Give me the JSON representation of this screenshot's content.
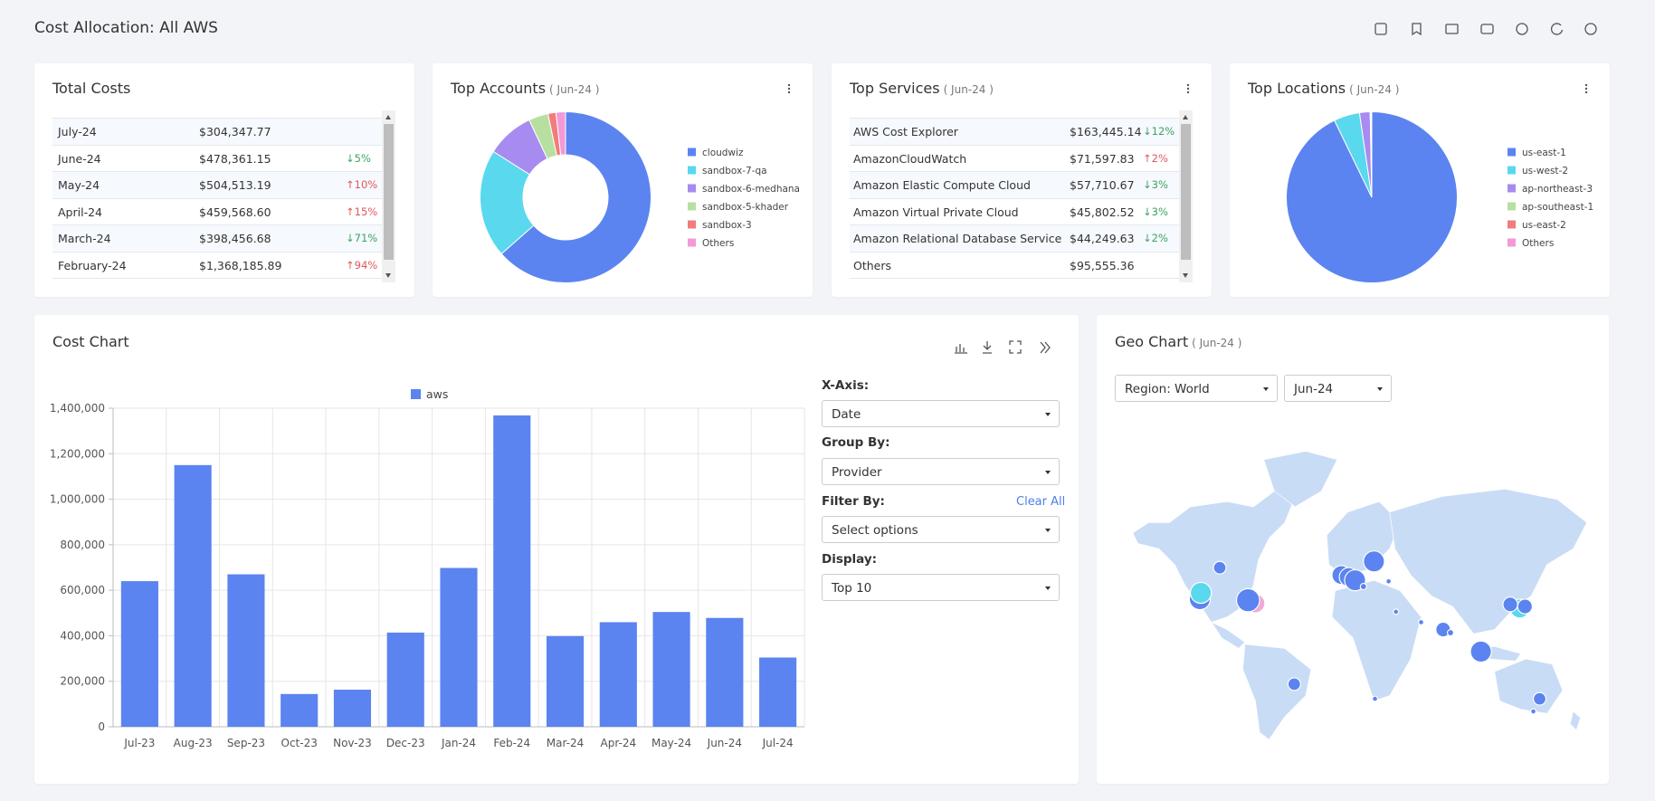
{
  "header": {
    "title": "Cost Allocation: All AWS"
  },
  "total_costs": {
    "title": "Total Costs",
    "rows": [
      [
        "July-24",
        "$304,347.77"
      ],
      [
        "June-24",
        "$478,361.15",
        "↓5%"
      ],
      [
        "May-24",
        "$504,513.19",
        "↑10%"
      ],
      [
        "April-24",
        "$459,568.60",
        "↑15%"
      ],
      [
        "March-24",
        "$398,456.68",
        "↓71%"
      ],
      [
        "February-24",
        "$1,368,185.89",
        "↑94%"
      ]
    ]
  },
  "top_services": {
    "title": "Top Services",
    "subtitle": "( Jun-24 )",
    "rows": [
      [
        "AWS Cost Explorer",
        "$163,445.14",
        "↓12%"
      ],
      [
        "AmazonCloudWatch",
        "$71,597.83",
        "↑2%"
      ],
      [
        "Amazon Elastic Compute Cloud",
        "$57,710.67",
        "↓3%"
      ],
      [
        "Amazon Virtual Private Cloud",
        "$45,802.52",
        "↓3%"
      ],
      [
        "Amazon Relational Database Service",
        "$44,249.63",
        "↓2%"
      ],
      [
        "Others",
        "$95,555.36"
      ]
    ]
  },
  "chart_data": [
    {
      "type": "donut",
      "title": "Top Accounts",
      "subtitle": "( Jun-24 )",
      "categories": [
        "cloudwiz",
        "sandbox-7-qa",
        "sandbox-6-medhana",
        "sandbox-5-khader",
        "sandbox-3",
        "Others"
      ],
      "values": [
        63.5,
        20.5,
        9,
        3.7,
        1.5,
        1.8
      ],
      "colors": [
        "#5b84f0",
        "#5ad8ee",
        "#a78bf0",
        "#b7e0a0",
        "#f27b7b",
        "#f29ad8"
      ]
    },
    {
      "type": "pie",
      "title": "Top Locations",
      "subtitle": "( Jun-24 )",
      "categories": [
        "us-east-1",
        "us-west-2",
        "ap-northeast-3",
        "ap-southeast-1",
        "us-east-2",
        "Others"
      ],
      "values": [
        92.8,
        4.9,
        2,
        0.1,
        0.1,
        0.1
      ],
      "colors": [
        "#5b84f0",
        "#5ad8ee",
        "#a78bf0",
        "#b7e0a0",
        "#f27b7b",
        "#f29ad8"
      ]
    },
    {
      "type": "bar",
      "title": "Cost Chart",
      "categories": [
        "Jul-23",
        "Aug-23",
        "Sep-23",
        "Oct-23",
        "Nov-23",
        "Dec-23",
        "Jan-24",
        "Feb-24",
        "Mar-24",
        "Apr-24",
        "May-24",
        "Jun-24",
        "Jul-24"
      ],
      "series": [
        {
          "name": "aws",
          "color": "#5b84f0",
          "values": [
            640000,
            1150000,
            670000,
            144000,
            163000,
            414000,
            698000,
            1368185.89,
            398456.68,
            459568.6,
            504513.19,
            478361.15,
            304347.77
          ]
        }
      ],
      "ylim": [
        0,
        1400000
      ],
      "yticks": [
        0,
        {
          "value": 200000,
          "label": "200,000"
        },
        {
          "value": 400000,
          "label": "400,000"
        },
        {
          "value": 600000,
          "label": "600,000"
        },
        {
          "value": 800000,
          "label": "800,000"
        },
        {
          "value": 1000000,
          "label": "1,000,000"
        },
        {
          "value": 1200000,
          "label": "1,200,000"
        },
        {
          "value": 1400000,
          "label": "1,400,000"
        }
      ],
      "grid": true
    }
  ],
  "cost_chart_controls": {
    "x_axis": {
      "label": "X-Axis:",
      "value": "Date"
    },
    "group_by": {
      "label": "Group By:",
      "value": "Provider"
    },
    "filter_by": {
      "label": "Filter By:",
      "value": "Select options",
      "action": "Clear All"
    },
    "display": {
      "label": "Display:",
      "value": "Top 10"
    }
  },
  "geo_chart": {
    "title": "Geo Chart",
    "subtitle": "( Jun-24 )",
    "region": "Region: World",
    "period": "Jun-24"
  }
}
